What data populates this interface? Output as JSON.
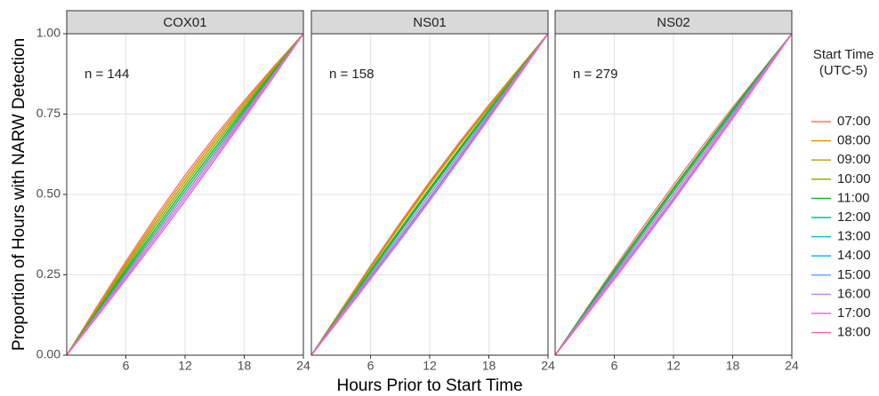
{
  "chart_data": [
    {
      "type": "line",
      "title": "COX01",
      "annotation": "n = 144",
      "ylabel": "Proportion of Hours with NARW Detection",
      "legend_title": [
        "Start Time",
        "(UTC-5)"
      ],
      "x": [
        0,
        3,
        6,
        9,
        12,
        15,
        18,
        21,
        24
      ],
      "xlim": [
        0,
        24
      ],
      "xticks": [
        6,
        12,
        18,
        24
      ],
      "ylim": [
        0,
        1
      ],
      "yticks": [
        {
          "value": 0,
          "label": "0.00"
        },
        {
          "value": 0.25,
          "label": "0.25"
        },
        {
          "value": 0.5,
          "label": "0.50"
        },
        {
          "value": 0.75,
          "label": "0.75"
        },
        {
          "value": 1,
          "label": "1.00"
        }
      ],
      "grid": true,
      "series": [
        {
          "name": "07:00",
          "color": "#F8766D",
          "values": [
            0,
            0.148,
            0.292,
            0.43,
            0.56,
            0.68,
            0.792,
            0.898,
            1
          ]
        },
        {
          "name": "08:00",
          "color": "#DE8C00",
          "values": [
            0,
            0.144,
            0.285,
            0.421,
            0.55,
            0.671,
            0.785,
            0.894,
            1
          ]
        },
        {
          "name": "09:00",
          "color": "#B79F00",
          "values": [
            0,
            0.14,
            0.278,
            0.412,
            0.54,
            0.662,
            0.778,
            0.89,
            1
          ]
        },
        {
          "name": "10:00",
          "color": "#7CAE00",
          "values": [
            0,
            0.136,
            0.271,
            0.403,
            0.53,
            0.653,
            0.771,
            0.886,
            1
          ]
        },
        {
          "name": "11:00",
          "color": "#00BA38",
          "values": [
            0,
            0.133,
            0.264,
            0.393,
            0.52,
            0.643,
            0.764,
            0.883,
            1
          ]
        },
        {
          "name": "12:00",
          "color": "#00C08B",
          "values": [
            0,
            0.129,
            0.257,
            0.384,
            0.51,
            0.634,
            0.757,
            0.879,
            1
          ]
        },
        {
          "name": "13:00",
          "color": "#00BFC4",
          "values": [
            0,
            0.125,
            0.25,
            0.375,
            0.5,
            0.625,
            0.75,
            0.875,
            1
          ]
        },
        {
          "name": "14:00",
          "color": "#00B4F0",
          "values": [
            0,
            0.121,
            0.243,
            0.366,
            0.49,
            0.616,
            0.743,
            0.871,
            1
          ]
        },
        {
          "name": "15:00",
          "color": "#619CFF",
          "values": [
            0,
            0.117,
            0.236,
            0.357,
            0.48,
            0.607,
            0.736,
            0.867,
            1
          ]
        },
        {
          "name": "16:00",
          "color": "#C77CFF",
          "values": [
            0,
            0.121,
            0.243,
            0.366,
            0.49,
            0.616,
            0.743,
            0.871,
            1
          ]
        },
        {
          "name": "17:00",
          "color": "#F564E3",
          "values": [
            0,
            0.117,
            0.236,
            0.357,
            0.48,
            0.607,
            0.736,
            0.867,
            1
          ]
        },
        {
          "name": "18:00",
          "color": "#FF64B0",
          "values": [
            0,
            0.125,
            0.25,
            0.375,
            0.5,
            0.625,
            0.75,
            0.875,
            1
          ]
        }
      ]
    },
    {
      "type": "line",
      "title": "NS01",
      "annotation": "n = 158",
      "xlabel": "Hours Prior to Start Time",
      "x": [
        0,
        3,
        6,
        9,
        12,
        15,
        18,
        21,
        24
      ],
      "xlim": [
        0,
        24
      ],
      "xticks": [
        6,
        12,
        18,
        24
      ],
      "ylim": [
        0,
        1
      ],
      "yticks": [
        0,
        0.25,
        0.5,
        0.75,
        1
      ],
      "grid": true,
      "series": [
        {
          "name": "07:00",
          "color": "#F8766D",
          "values": [
            0,
            0.14,
            0.278,
            0.412,
            0.54,
            0.662,
            0.778,
            0.89,
            1
          ]
        },
        {
          "name": "08:00",
          "color": "#DE8C00",
          "values": [
            0,
            0.138,
            0.275,
            0.407,
            0.535,
            0.657,
            0.775,
            0.888,
            1
          ]
        },
        {
          "name": "09:00",
          "color": "#B79F00",
          "values": [
            0,
            0.136,
            0.271,
            0.403,
            0.53,
            0.653,
            0.771,
            0.886,
            1
          ]
        },
        {
          "name": "10:00",
          "color": "#7CAE00",
          "values": [
            0,
            0.133,
            0.264,
            0.393,
            0.52,
            0.643,
            0.764,
            0.883,
            1
          ]
        },
        {
          "name": "11:00",
          "color": "#00BA38",
          "values": [
            0,
            0.131,
            0.261,
            0.389,
            0.515,
            0.639,
            0.761,
            0.881,
            1
          ]
        },
        {
          "name": "12:00",
          "color": "#00C08B",
          "values": [
            0,
            0.129,
            0.257,
            0.384,
            0.51,
            0.634,
            0.757,
            0.879,
            1
          ]
        },
        {
          "name": "13:00",
          "color": "#00BFC4",
          "values": [
            0,
            0.125,
            0.25,
            0.375,
            0.5,
            0.625,
            0.75,
            0.875,
            1
          ]
        },
        {
          "name": "14:00",
          "color": "#00B4F0",
          "values": [
            0,
            0.121,
            0.243,
            0.366,
            0.49,
            0.616,
            0.743,
            0.871,
            1
          ]
        },
        {
          "name": "15:00",
          "color": "#619CFF",
          "values": [
            0,
            0.119,
            0.239,
            0.361,
            0.485,
            0.611,
            0.739,
            0.869,
            1
          ]
        },
        {
          "name": "16:00",
          "color": "#C77CFF",
          "values": [
            0,
            0.117,
            0.236,
            0.357,
            0.48,
            0.607,
            0.736,
            0.867,
            1
          ]
        },
        {
          "name": "17:00",
          "color": "#F564E3",
          "values": [
            0,
            0.119,
            0.239,
            0.361,
            0.485,
            0.611,
            0.739,
            0.869,
            1
          ]
        },
        {
          "name": "18:00",
          "color": "#FF64B0",
          "values": [
            0,
            0.125,
            0.25,
            0.375,
            0.5,
            0.625,
            0.75,
            0.875,
            1
          ]
        }
      ]
    },
    {
      "type": "line",
      "title": "NS02",
      "annotation": "n = 279",
      "x": [
        0,
        3,
        6,
        9,
        12,
        15,
        18,
        21,
        24
      ],
      "xlim": [
        0,
        24
      ],
      "xticks": [
        6,
        12,
        18,
        24
      ],
      "ylim": [
        0,
        1
      ],
      "yticks": [
        0,
        0.25,
        0.5,
        0.75,
        1
      ],
      "grid": true,
      "series": [
        {
          "name": "07:00",
          "color": "#F8766D",
          "values": [
            0,
            0.136,
            0.271,
            0.403,
            0.53,
            0.653,
            0.771,
            0.886,
            1
          ]
        },
        {
          "name": "08:00",
          "color": "#DE8C00",
          "values": [
            0,
            0.133,
            0.264,
            0.393,
            0.52,
            0.643,
            0.764,
            0.883,
            1
          ]
        },
        {
          "name": "09:00",
          "color": "#B79F00",
          "values": [
            0,
            0.131,
            0.261,
            0.389,
            0.515,
            0.639,
            0.761,
            0.881,
            1
          ]
        },
        {
          "name": "10:00",
          "color": "#7CAE00",
          "values": [
            0,
            0.129,
            0.257,
            0.384,
            0.51,
            0.634,
            0.757,
            0.879,
            1
          ]
        },
        {
          "name": "11:00",
          "color": "#00BA38",
          "values": [
            0,
            0.133,
            0.264,
            0.393,
            0.52,
            0.643,
            0.764,
            0.883,
            1
          ]
        },
        {
          "name": "12:00",
          "color": "#00C08B",
          "values": [
            0,
            0.129,
            0.257,
            0.384,
            0.51,
            0.634,
            0.757,
            0.879,
            1
          ]
        },
        {
          "name": "13:00",
          "color": "#00BFC4",
          "values": [
            0,
            0.125,
            0.25,
            0.375,
            0.5,
            0.625,
            0.75,
            0.875,
            1
          ]
        },
        {
          "name": "14:00",
          "color": "#00B4F0",
          "values": [
            0,
            0.121,
            0.243,
            0.366,
            0.49,
            0.616,
            0.743,
            0.871,
            1
          ]
        },
        {
          "name": "15:00",
          "color": "#619CFF",
          "values": [
            0,
            0.119,
            0.239,
            0.361,
            0.485,
            0.611,
            0.739,
            0.869,
            1
          ]
        },
        {
          "name": "16:00",
          "color": "#C77CFF",
          "values": [
            0,
            0.121,
            0.243,
            0.366,
            0.49,
            0.616,
            0.743,
            0.871,
            1
          ]
        },
        {
          "name": "17:00",
          "color": "#F564E3",
          "values": [
            0,
            0.117,
            0.236,
            0.357,
            0.48,
            0.607,
            0.736,
            0.867,
            1
          ]
        },
        {
          "name": "18:00",
          "color": "#FF64B0",
          "values": [
            0,
            0.125,
            0.25,
            0.375,
            0.5,
            0.625,
            0.75,
            0.875,
            1
          ]
        }
      ]
    }
  ]
}
